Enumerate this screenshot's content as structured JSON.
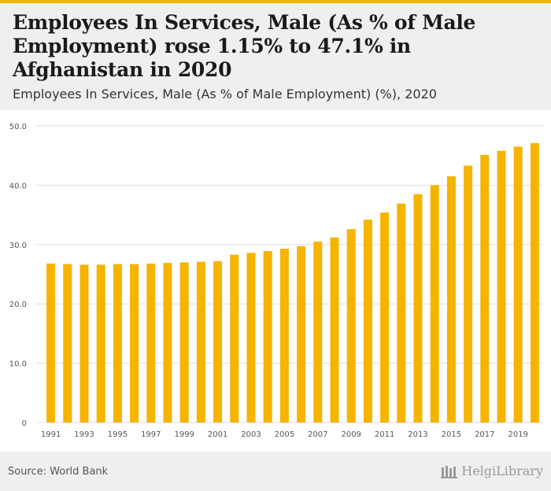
{
  "header": {
    "title": "Employees In Services, Male (As % of Male Employment) rose 1.15% to 47.1% in Afghanistan in 2020",
    "subtitle": "Employees In Services, Male (As % of Male Employment) (%), 2020"
  },
  "footer": {
    "source": "Source: World Bank",
    "brand": "HelgiLibrary"
  },
  "colors": {
    "bar": "#f5b400",
    "grid": "#dddddd",
    "header_bg": "#efefef",
    "accent": "#f5b400"
  },
  "chart_data": {
    "type": "bar",
    "title": "Employees In Services, Male (As % of Male Employment) (%), 2020",
    "xlabel": "",
    "ylabel": "",
    "ylim": [
      0,
      50
    ],
    "yticks": [
      "0",
      "10.0",
      "20.0",
      "30.0",
      "40.0",
      "50.0"
    ],
    "xtick_labels": [
      "1991",
      "1993",
      "1995",
      "1997",
      "1999",
      "2001",
      "2003",
      "2005",
      "2007",
      "2009",
      "2011",
      "2013",
      "2015",
      "2017",
      "2019"
    ],
    "categories": [
      "1991",
      "1992",
      "1993",
      "1994",
      "1995",
      "1996",
      "1997",
      "1998",
      "1999",
      "2000",
      "2001",
      "2002",
      "2003",
      "2004",
      "2005",
      "2006",
      "2007",
      "2008",
      "2009",
      "2010",
      "2011",
      "2012",
      "2013",
      "2014",
      "2015",
      "2016",
      "2017",
      "2018",
      "2019",
      "2020"
    ],
    "values": [
      26.8,
      26.7,
      26.6,
      26.6,
      26.7,
      26.7,
      26.8,
      26.9,
      27.0,
      27.1,
      27.2,
      28.3,
      28.6,
      28.9,
      29.3,
      29.7,
      30.5,
      31.2,
      32.6,
      34.2,
      35.4,
      36.9,
      38.5,
      40.0,
      41.5,
      43.3,
      45.1,
      45.8,
      46.5,
      47.1
    ],
    "grid": true,
    "legend": "none"
  }
}
